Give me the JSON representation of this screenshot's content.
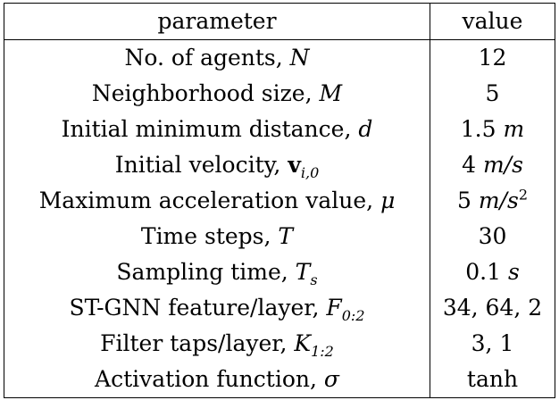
{
  "header": {
    "parameter": "parameter",
    "value": "value"
  },
  "rows": [
    {
      "label": "No. of agents,",
      "sym": "N",
      "sub": "",
      "bold": false,
      "num": "12",
      "unit": "",
      "unit_sup": ""
    },
    {
      "label": "Neighborhood size,",
      "sym": "M",
      "sub": "",
      "bold": false,
      "num": "5",
      "unit": "",
      "unit_sup": ""
    },
    {
      "label": "Initial minimum distance,",
      "sym": "d",
      "sub": "",
      "bold": false,
      "num": "1.5",
      "unit": "m",
      "unit_sup": ""
    },
    {
      "label": "Initial velocity,",
      "sym": "v",
      "sub": "i,0",
      "bold": true,
      "num": "4",
      "unit": "m/s",
      "unit_sup": ""
    },
    {
      "label": "Maximum acceleration value,",
      "sym": "μ",
      "sub": "",
      "bold": false,
      "num": "5",
      "unit": "m/s",
      "unit_sup": "2"
    },
    {
      "label": "Time steps,",
      "sym": "T",
      "sub": "",
      "bold": false,
      "num": "30",
      "unit": "",
      "unit_sup": ""
    },
    {
      "label": "Sampling time,",
      "sym": "T",
      "sub": "s",
      "bold": false,
      "num": "0.1",
      "unit": "s",
      "unit_sup": ""
    },
    {
      "label": "ST-GNN feature/layer,",
      "sym": "F",
      "sub": "0:2",
      "bold": false,
      "num": "34, 64, 2",
      "unit": "",
      "unit_sup": ""
    },
    {
      "label": "Filter taps/layer,",
      "sym": "K",
      "sub": "1:2",
      "bold": false,
      "num": "3, 1",
      "unit": "",
      "unit_sup": ""
    },
    {
      "label": "Activation function,",
      "sym": "σ",
      "sub": "",
      "bold": false,
      "num": "tanh",
      "unit": "",
      "unit_sup": ""
    }
  ]
}
